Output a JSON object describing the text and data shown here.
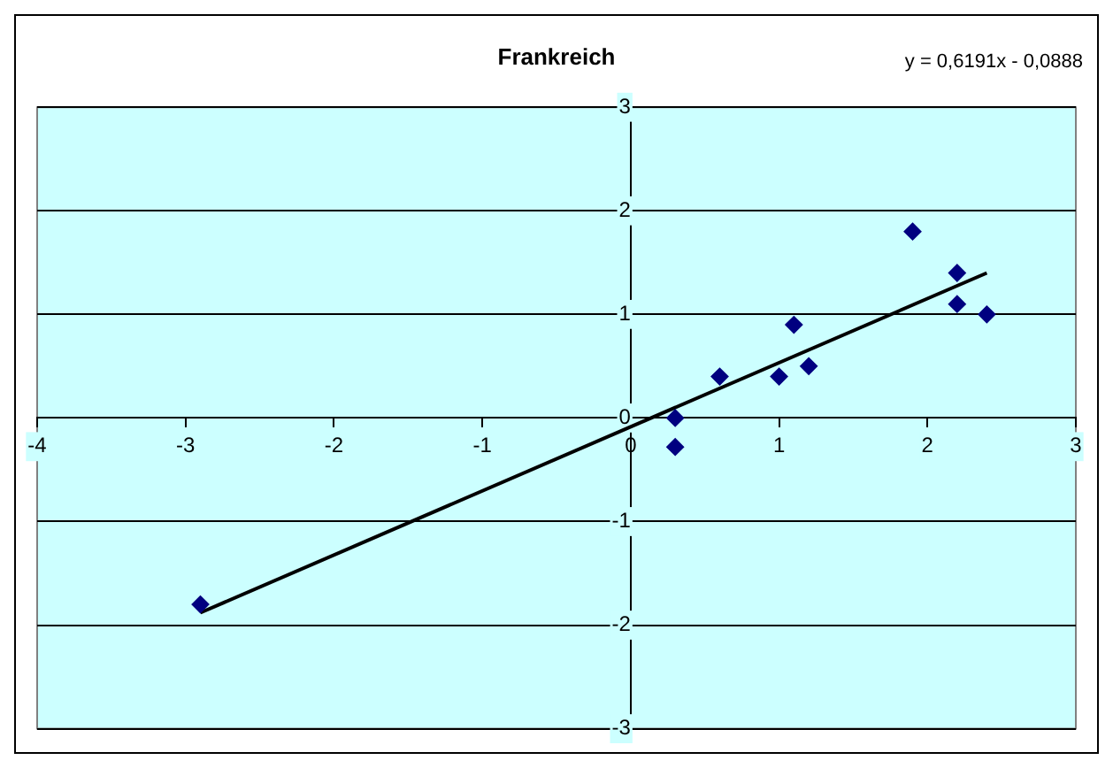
{
  "chart_data": {
    "type": "scatter",
    "title": "Frankreich",
    "annotations": [
      "y = 0,6191x - 0,0888"
    ],
    "series": [
      {
        "type": "scatter",
        "color": "#000080",
        "marker": "diamond",
        "x": [
          -2.9,
          0.3,
          0.3,
          0.6,
          1.0,
          1.1,
          1.2,
          1.9,
          2.2,
          2.2,
          2.4
        ],
        "values": [
          -1.8,
          0.0,
          -0.28,
          0.4,
          0.4,
          0.9,
          0.5,
          1.8,
          1.4,
          1.1,
          1.0
        ]
      },
      {
        "type": "line",
        "color": "#000000",
        "marker": "none",
        "line_style": "solid",
        "x": [
          -2.9,
          2.4
        ],
        "values": [
          -1.88,
          1.4
        ]
      }
    ],
    "xlim": [
      -4,
      3
    ],
    "xticks": [
      -4,
      -3,
      -2,
      -1,
      0,
      1,
      2,
      3
    ],
    "ylim": [
      -3,
      3
    ],
    "yticks": [
      -3,
      -2,
      -1,
      0,
      1,
      2,
      3
    ],
    "grid": "y"
  }
}
